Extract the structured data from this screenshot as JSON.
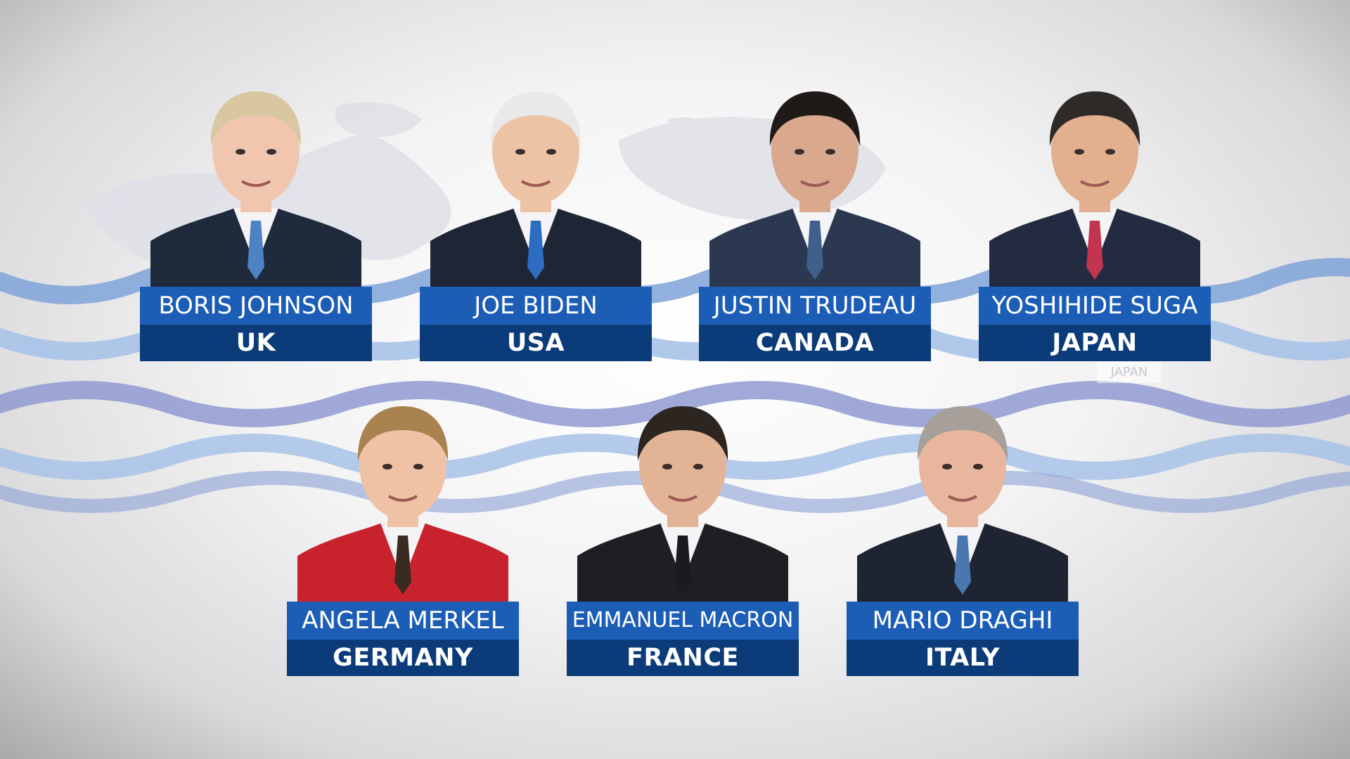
{
  "leaders": [
    {
      "name": "BORIS JOHNSON",
      "country": "UK",
      "suit": "#1f2a3d",
      "tie": "#4d82c4",
      "hair": "#d8c7a0",
      "skin": "#f0c6ae"
    },
    {
      "name": "JOE BIDEN",
      "country": "USA",
      "suit": "#1e2636",
      "tie": "#2d6dc1",
      "hair": "#e9e9e9",
      "skin": "#edc3a6"
    },
    {
      "name": "JUSTIN TRUDEAU",
      "country": "CANADA",
      "suit": "#2b3850",
      "tie": "#3f5f8c",
      "hair": "#1f1a17",
      "skin": "#d9a88d"
    },
    {
      "name": "YOSHIHIDE SUGA",
      "country": "JAPAN",
      "suit": "#222b40",
      "tie": "#c2344f",
      "hair": "#2e2a28",
      "skin": "#e2b08e"
    },
    {
      "name": "ANGELA MERKEL",
      "country": "GERMANY",
      "suit": "#c8232d",
      "tie": "#3a2b22",
      "hair": "#a9834f",
      "skin": "#efc2a6"
    },
    {
      "name": "EMMANUEL MACRON",
      "country": "FRANCE",
      "suit": "#1d1f24",
      "tie": "#1a1b1f",
      "hair": "#2c2520",
      "skin": "#e3b396"
    },
    {
      "name": "MARIO DRAGHI",
      "country": "ITALY",
      "suit": "#1f2433",
      "tie": "#4a77b0",
      "hair": "#a7a09a",
      "skin": "#e7b69c"
    }
  ],
  "background": {
    "ghost_label": "JAPAN",
    "wave_colors": [
      "#7fa3d8",
      "#8aa0d4",
      "#a7c2e8",
      "#8f9ad0"
    ]
  }
}
